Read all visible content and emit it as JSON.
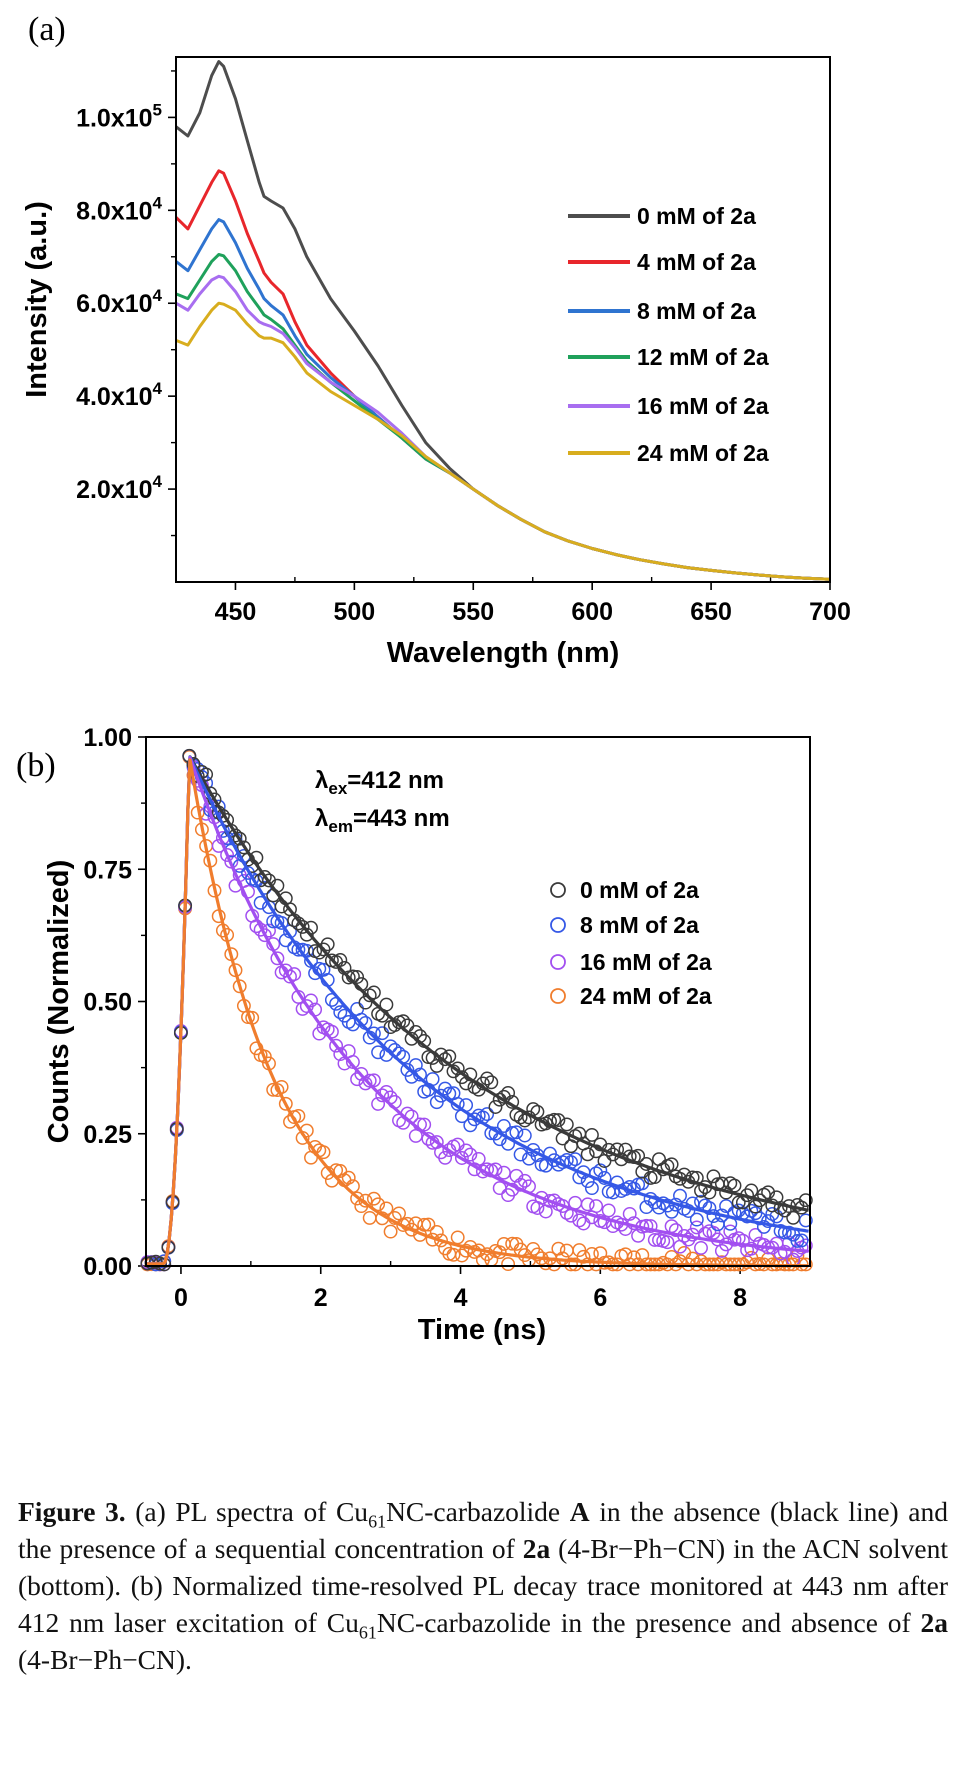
{
  "panel_a": {
    "label": "(a)"
  },
  "panel_b": {
    "label": "(b)"
  },
  "chart_data": [
    {
      "type": "line",
      "panel": "(a)",
      "xlabel": "Wavelength (nm)",
      "ylabel": "Intensity (a.u.)",
      "xlim": [
        425,
        700
      ],
      "ylim": [
        0,
        113000
      ],
      "x_ticks": [
        450,
        500,
        550,
        600,
        650,
        700
      ],
      "y_ticks": [
        20000,
        40000,
        60000,
        80000,
        100000
      ],
      "y_tick_labels": [
        {
          "mantissa": "2.0x10",
          "exp": "4"
        },
        {
          "mantissa": "4.0x10",
          "exp": "4"
        },
        {
          "mantissa": "6.0x10",
          "exp": "4"
        },
        {
          "mantissa": "8.0x10",
          "exp": "4"
        },
        {
          "mantissa": "1.0x10",
          "exp": "5"
        }
      ],
      "legend_position": "right",
      "x": [
        425,
        430,
        435,
        440,
        443,
        445,
        450,
        455,
        460,
        462,
        465,
        470,
        475,
        480,
        490,
        500,
        510,
        520,
        530,
        540,
        550,
        560,
        570,
        580,
        590,
        600,
        610,
        620,
        630,
        640,
        650,
        660,
        670,
        680,
        690,
        700
      ],
      "series": [
        {
          "name": "0 mM of 2a",
          "color": "#4d4d4d",
          "values": [
            98000,
            96000,
            101000,
            109000,
            112000,
            111000,
            104000,
            95000,
            86000,
            83000,
            82000,
            80500,
            76000,
            70000,
            61000,
            54000,
            46500,
            38000,
            30000,
            24500,
            20000,
            16500,
            13500,
            10800,
            8800,
            7200,
            5900,
            4800,
            3900,
            3100,
            2500,
            1950,
            1500,
            1100,
            800,
            600
          ]
        },
        {
          "name": "4 mM of 2a",
          "color": "#e8262b",
          "values": [
            78500,
            76000,
            81000,
            86000,
            88500,
            88000,
            82000,
            75000,
            69000,
            66500,
            64500,
            62000,
            56000,
            51000,
            45000,
            40000,
            35500,
            31000,
            26500,
            23500,
            20000,
            16500,
            13500,
            10800,
            8800,
            7200,
            5900,
            4800,
            3900,
            3100,
            2500,
            1950,
            1500,
            1100,
            800,
            600
          ]
        },
        {
          "name": "8 mM of 2a",
          "color": "#2f74d0",
          "values": [
            69000,
            67000,
            71500,
            76000,
            78000,
            77500,
            73000,
            67500,
            63000,
            61000,
            59500,
            57500,
            53000,
            49000,
            44000,
            40000,
            35500,
            31000,
            26500,
            23500,
            20000,
            16500,
            13500,
            10800,
            8800,
            7200,
            5900,
            4800,
            3900,
            3100,
            2500,
            1950,
            1500,
            1100,
            800,
            600
          ]
        },
        {
          "name": "12 mM of 2a",
          "color": "#1fa15b",
          "values": [
            62000,
            61000,
            65000,
            69000,
            70500,
            70200,
            67000,
            62500,
            59000,
            57500,
            56500,
            54500,
            51000,
            47500,
            43000,
            39000,
            35000,
            31000,
            26500,
            23500,
            20000,
            16500,
            13500,
            10800,
            8800,
            7200,
            5900,
            4800,
            3900,
            3100,
            2500,
            1950,
            1500,
            1100,
            800,
            600
          ]
        },
        {
          "name": "16 mM of 2a",
          "color": "#a86ef0",
          "values": [
            60000,
            58500,
            62000,
            65000,
            65800,
            65500,
            62500,
            58500,
            56000,
            55500,
            55000,
            53500,
            50500,
            47000,
            43000,
            40000,
            36500,
            32000,
            27000,
            23500,
            20000,
            16500,
            13500,
            10800,
            8800,
            7200,
            5900,
            4800,
            3900,
            3100,
            2500,
            1950,
            1500,
            1100,
            800,
            600
          ]
        },
        {
          "name": "24 mM of 2a",
          "color": "#d8ad1e",
          "values": [
            52000,
            51000,
            55000,
            58500,
            60000,
            59800,
            58500,
            55500,
            53000,
            52500,
            52500,
            51500,
            48500,
            45000,
            41000,
            38000,
            35000,
            31500,
            27000,
            23500,
            20000,
            16500,
            13500,
            10800,
            8800,
            7200,
            5900,
            4800,
            3900,
            3100,
            2500,
            1950,
            1500,
            1100,
            800,
            600
          ]
        }
      ]
    },
    {
      "type": "scatter",
      "panel": "(b)",
      "xlabel": "Time (ns)",
      "ylabel": "Counts (Normalized)",
      "xlim": [
        -0.5,
        9
      ],
      "ylim": [
        0,
        1
      ],
      "x_ticks": [
        0,
        2,
        4,
        6,
        8
      ],
      "y_ticks": [
        0,
        0.25,
        0.5,
        0.75,
        1.0
      ],
      "y_tick_labels": [
        "0.00",
        "0.25",
        "0.50",
        "0.75",
        "1.00"
      ],
      "annotations": [
        {
          "symbol": "λ",
          "sub": "ex",
          "text": "=412 nm"
        },
        {
          "symbol": "λ",
          "sub": "em",
          "text": "=443 nm"
        }
      ],
      "legend_position": "right",
      "peak_time_ns": 0.12,
      "series": [
        {
          "name": "0 mM of 2a",
          "color": "#3a3a3a",
          "decay_time_ns": 4.0
        },
        {
          "name": "8 mM of 2a",
          "color": "#3558e6",
          "decay_time_ns": 3.3
        },
        {
          "name": "16 mM of 2a",
          "color": "#a24ff0",
          "decay_time_ns": 2.5
        },
        {
          "name": "24 mM of 2a",
          "color": "#f07d2d",
          "decay_time_ns": 1.2
        }
      ]
    }
  ],
  "caption": {
    "figure_label": "Figure 3.",
    "t1": " (a) PL spectra of Cu",
    "sub1": "61",
    "t2": "NC-carbazolide ",
    "bold_a": "A",
    "t3": " in the absence (black line) and the presence of a sequential concentration of ",
    "bold_2a_1": "2a",
    "t4": " (4-Br−Ph−CN) in the ACN solvent (bottom). (b) Normalized time-resolved PL decay trace monitored at 443 nm after 412 nm laser excitation of Cu",
    "sub2": "61",
    "t5": "NC-carbazolide in the presence and absence of ",
    "bold_2a_2": "2a",
    "t6": " (4-Br−Ph−CN)."
  }
}
